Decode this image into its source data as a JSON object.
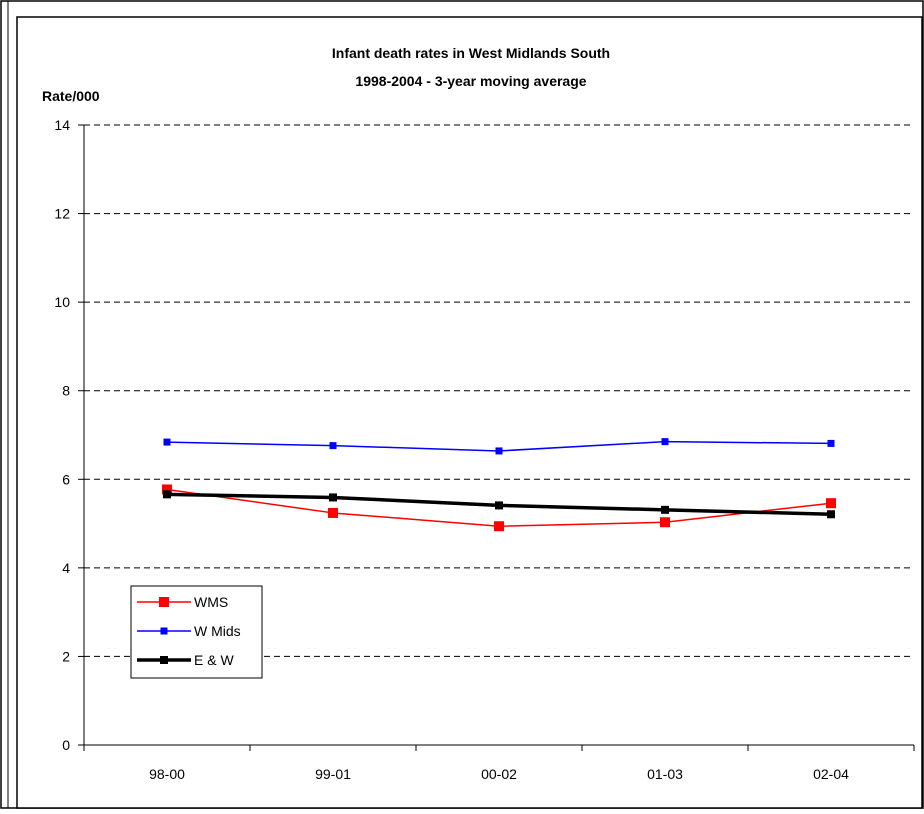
{
  "chart_data": {
    "type": "line",
    "title": "Infant death rates in West Midlands South",
    "subtitle": "1998-2004 - 3-year moving average",
    "ylabel": "Rate/000",
    "xlabel": "",
    "categories": [
      "98-00",
      "99-01",
      "00-02",
      "01-03",
      "02-04"
    ],
    "ylim": [
      0,
      14
    ],
    "yticks": [
      0,
      2,
      4,
      6,
      8,
      10,
      12,
      14
    ],
    "grid": "horizontal dashed",
    "legend_position": "bottom-left",
    "series": [
      {
        "name": "WMS",
        "color": "#ff0000",
        "values": [
          5.77,
          5.24,
          4.94,
          5.03,
          5.46
        ]
      },
      {
        "name": "W Mids",
        "color": "#0000ff",
        "values": [
          6.84,
          6.76,
          6.64,
          6.85,
          6.81
        ]
      },
      {
        "name": "E & W",
        "color": "#000000",
        "values": [
          5.66,
          5.59,
          5.41,
          5.31,
          5.21
        ]
      }
    ]
  }
}
